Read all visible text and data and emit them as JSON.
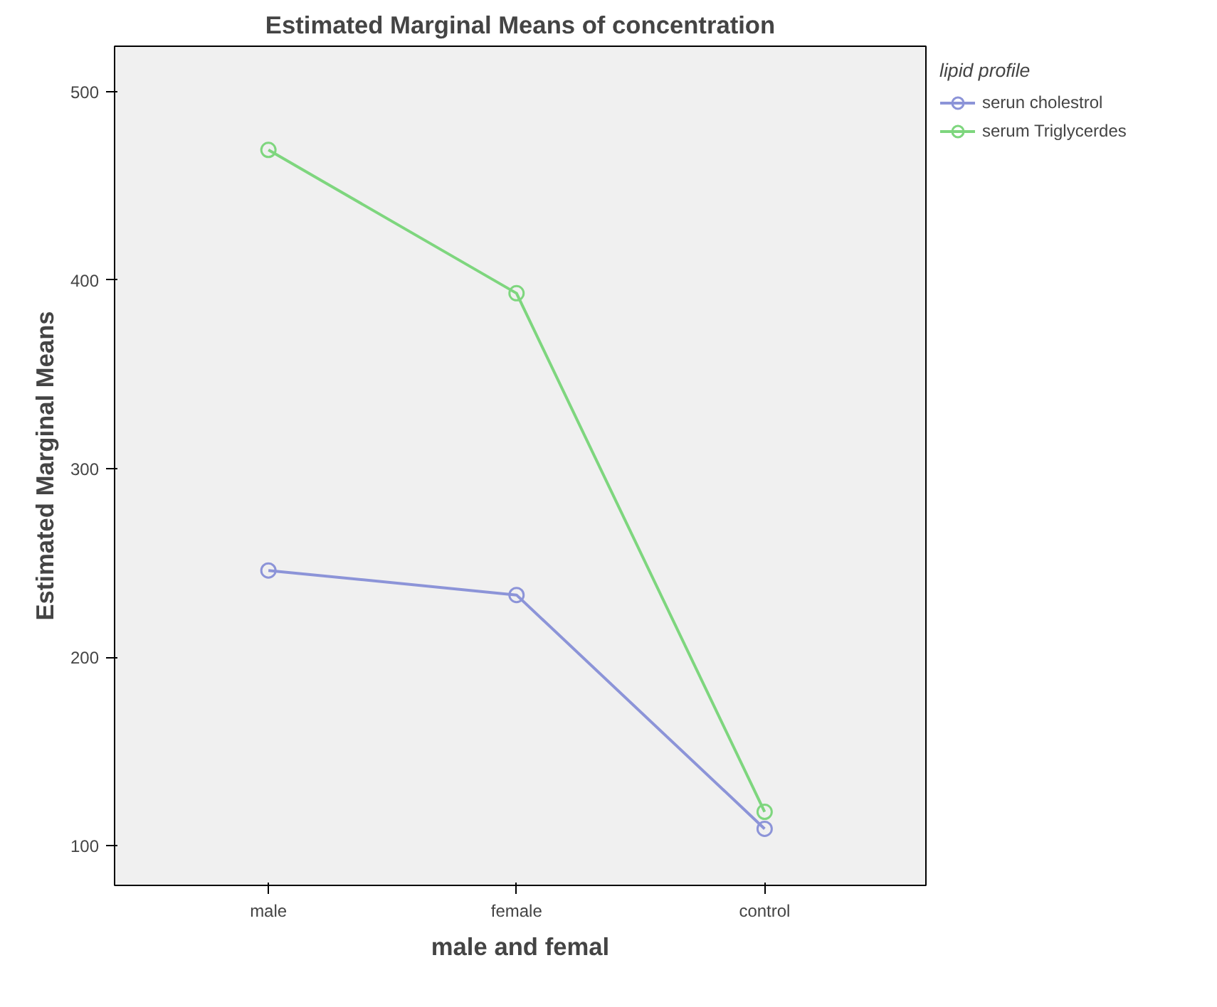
{
  "chart_data": {
    "type": "line",
    "title": "Estimated Marginal Means of concentration",
    "xlabel": "male and femal",
    "ylabel": "Estimated Marginal Means",
    "legend_title": "lipid profile",
    "categories": [
      "male",
      "female",
      "control"
    ],
    "series": [
      {
        "name": "serun cholestrol",
        "color": "#8c94d8",
        "values": [
          246,
          233,
          109
        ]
      },
      {
        "name": "serum Triglycerdes",
        "color": "#7ed67e",
        "values": [
          469,
          393,
          118
        ]
      }
    ],
    "ylim": [
      79,
      524
    ],
    "yticks": [
      100,
      200,
      300,
      400,
      500
    ],
    "grid": false,
    "legend": "top right",
    "marker": "circle",
    "line_style": "solid"
  }
}
